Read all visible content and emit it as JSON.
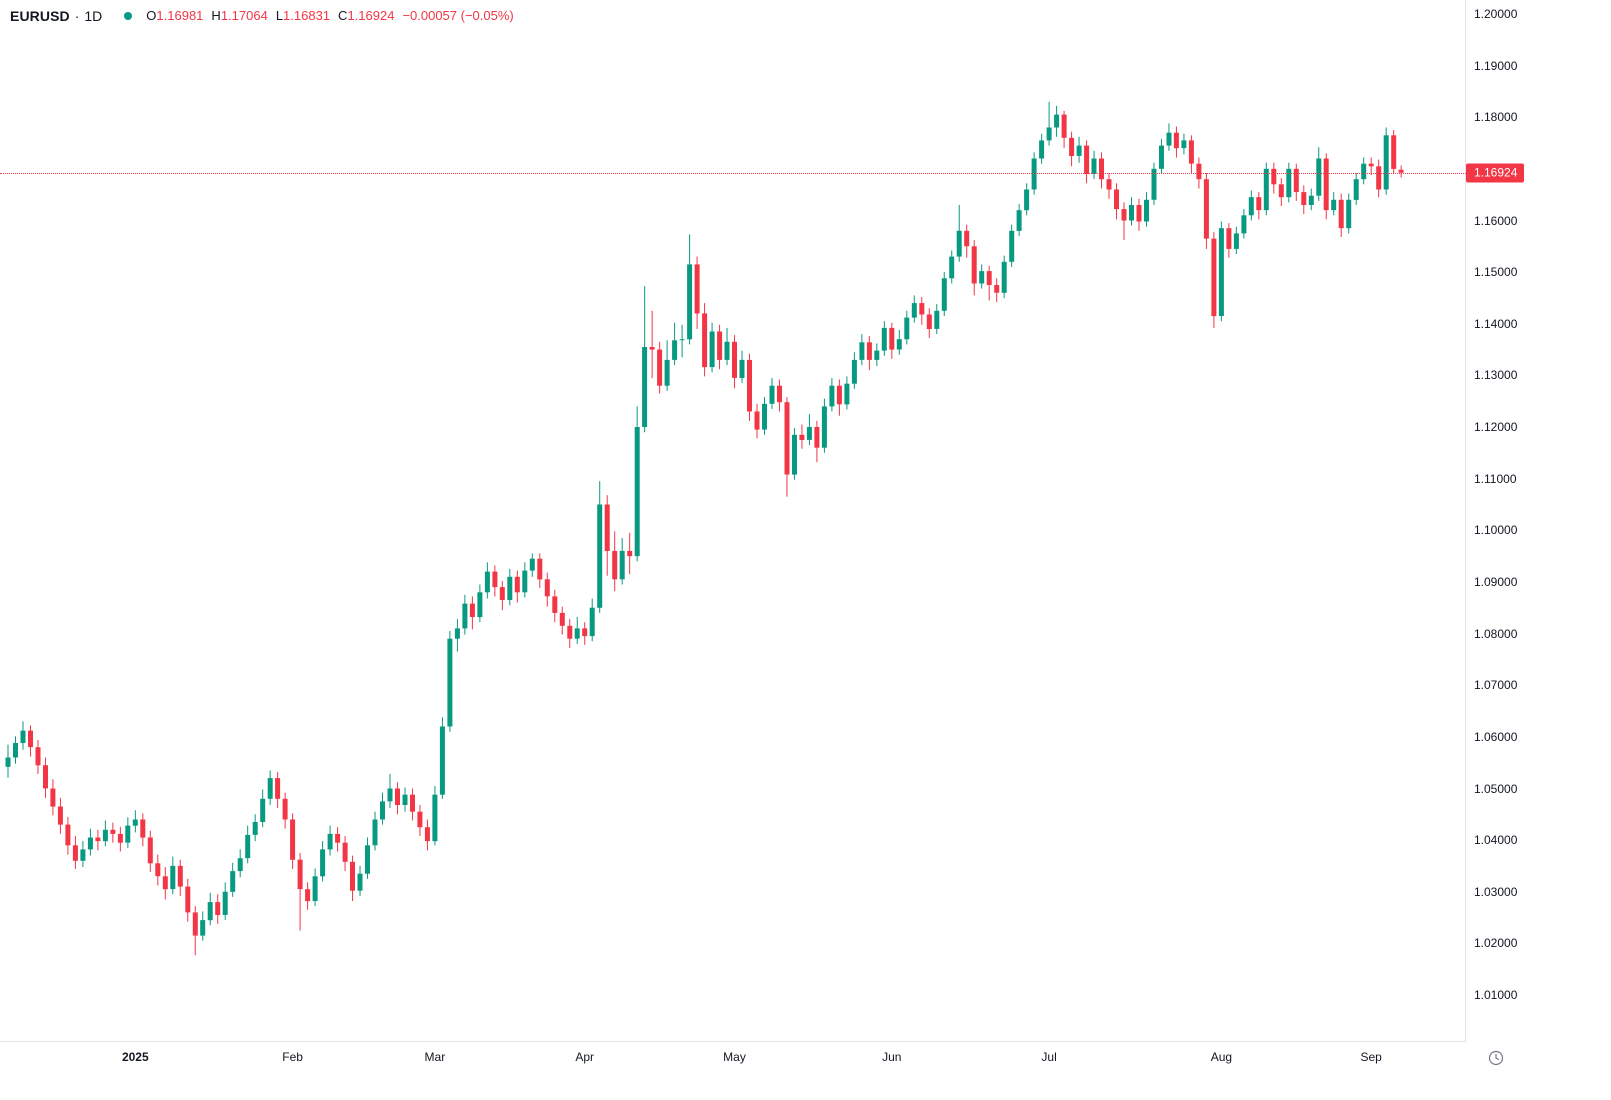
{
  "header": {
    "symbol": "EURUSD",
    "separator": "·",
    "timeframe": "1D",
    "ohlc": {
      "o_label": "O",
      "o": "1.16981",
      "h_label": "H",
      "h": "1.17064",
      "l_label": "L",
      "l": "1.16831",
      "c_label": "C",
      "c": "1.16924",
      "change": "−0.00057 (−0.05%)"
    }
  },
  "colors": {
    "up": "#089981",
    "down": "#f23645",
    "text": "#131722",
    "grid": "#e0e3eb",
    "badge_bg": "#f23645",
    "badge_text": "#ffffff"
  },
  "price_axis": {
    "badge": {
      "text": "1.16924",
      "price": 1.16924
    },
    "labels": [
      {
        "text": "1.20000",
        "price": 1.2
      },
      {
        "text": "1.19000",
        "price": 1.19
      },
      {
        "text": "1.18000",
        "price": 1.18
      },
      {
        "text": "1.16000",
        "price": 1.16
      },
      {
        "text": "1.15000",
        "price": 1.15
      },
      {
        "text": "1.14000",
        "price": 1.14
      },
      {
        "text": "1.13000",
        "price": 1.13
      },
      {
        "text": "1.12000",
        "price": 1.12
      },
      {
        "text": "1.11000",
        "price": 1.11
      },
      {
        "text": "1.10000",
        "price": 1.1
      },
      {
        "text": "1.09000",
        "price": 1.09
      },
      {
        "text": "1.08000",
        "price": 1.08
      },
      {
        "text": "1.07000",
        "price": 1.07
      },
      {
        "text": "1.06000",
        "price": 1.06
      },
      {
        "text": "1.05000",
        "price": 1.05
      },
      {
        "text": "1.04000",
        "price": 1.04
      },
      {
        "text": "1.03000",
        "price": 1.03
      },
      {
        "text": "1.02000",
        "price": 1.02
      },
      {
        "text": "1.01000",
        "price": 1.01
      }
    ]
  },
  "time_axis": {
    "labels": [
      {
        "text": "2025",
        "index": 17,
        "bold": true
      },
      {
        "text": "Feb",
        "index": 38
      },
      {
        "text": "Mar",
        "index": 57
      },
      {
        "text": "Apr",
        "index": 77
      },
      {
        "text": "May",
        "index": 97
      },
      {
        "text": "Jun",
        "index": 118
      },
      {
        "text": "Jul",
        "index": 139
      },
      {
        "text": "Aug",
        "index": 162
      },
      {
        "text": "Sep",
        "index": 182
      }
    ]
  },
  "chart_data": {
    "type": "candlestick",
    "title": "EURUSD daily candlestick chart",
    "symbol": "EURUSD",
    "interval": "1D",
    "xlabel": "",
    "ylabel": "",
    "ylim": [
      1.0009,
      1.2027
    ],
    "grid": false,
    "last_price": 1.16924,
    "last_candle": {
      "open": 1.16981,
      "high": 1.17064,
      "low": 1.16831,
      "close": 1.16924
    },
    "candles_format": [
      "open",
      "high",
      "low",
      "close"
    ],
    "candles": [
      [
        1.0542,
        1.0585,
        1.0521,
        1.056
      ],
      [
        1.056,
        1.0601,
        1.0548,
        1.0588
      ],
      [
        1.0588,
        1.063,
        1.0575,
        1.0612
      ],
      [
        1.0612,
        1.0622,
        1.0562,
        1.058
      ],
      [
        1.058,
        1.0594,
        1.0528,
        1.0545
      ],
      [
        1.0545,
        1.056,
        1.0482,
        1.05
      ],
      [
        1.05,
        1.0518,
        1.0448,
        1.0465
      ],
      [
        1.0465,
        1.0482,
        1.0412,
        1.043
      ],
      [
        1.043,
        1.0445,
        1.0372,
        1.039
      ],
      [
        1.039,
        1.0408,
        1.0344,
        1.036
      ],
      [
        1.036,
        1.0398,
        1.0348,
        1.0382
      ],
      [
        1.0382,
        1.0422,
        1.037,
        1.0405
      ],
      [
        1.0405,
        1.042,
        1.038,
        1.0398
      ],
      [
        1.0398,
        1.0438,
        1.0388,
        1.042
      ],
      [
        1.042,
        1.0434,
        1.0395,
        1.0412
      ],
      [
        1.0412,
        1.0426,
        1.0378,
        1.0395
      ],
      [
        1.0395,
        1.0444,
        1.0385,
        1.0428
      ],
      [
        1.0428,
        1.0458,
        1.0415,
        1.044
      ],
      [
        1.044,
        1.0452,
        1.0388,
        1.0405
      ],
      [
        1.0405,
        1.0418,
        1.0338,
        1.0355
      ],
      [
        1.0355,
        1.0372,
        1.0312,
        1.033
      ],
      [
        1.033,
        1.0348,
        1.0285,
        1.0305
      ],
      [
        1.0305,
        1.0368,
        1.0295,
        1.035
      ],
      [
        1.035,
        1.0362,
        1.0292,
        1.031
      ],
      [
        1.031,
        1.0325,
        1.0242,
        1.026
      ],
      [
        1.026,
        1.0272,
        1.0177,
        1.0215
      ],
      [
        1.0215,
        1.0262,
        1.0205,
        1.0245
      ],
      [
        1.0245,
        1.0298,
        1.0235,
        1.028
      ],
      [
        1.028,
        1.0295,
        1.0238,
        1.0255
      ],
      [
        1.0255,
        1.0318,
        1.0245,
        1.03
      ],
      [
        1.03,
        1.0356,
        1.029,
        1.034
      ],
      [
        1.034,
        1.0382,
        1.0328,
        1.0365
      ],
      [
        1.0365,
        1.0428,
        1.0355,
        1.041
      ],
      [
        1.041,
        1.045,
        1.0398,
        1.0435
      ],
      [
        1.0435,
        1.0498,
        1.0425,
        1.048
      ],
      [
        1.048,
        1.0535,
        1.0468,
        1.052
      ],
      [
        1.052,
        1.0532,
        1.0462,
        1.048
      ],
      [
        1.048,
        1.0492,
        1.0422,
        1.044
      ],
      [
        1.044,
        1.0452,
        1.0344,
        1.0362
      ],
      [
        1.0362,
        1.0375,
        1.0225,
        1.0305
      ],
      [
        1.0305,
        1.0318,
        1.0265,
        1.0282
      ],
      [
        1.0282,
        1.0345,
        1.0272,
        1.033
      ],
      [
        1.033,
        1.0398,
        1.032,
        1.0382
      ],
      [
        1.0382,
        1.0428,
        1.037,
        1.0412
      ],
      [
        1.0412,
        1.0425,
        1.0378,
        1.0395
      ],
      [
        1.0395,
        1.0408,
        1.034,
        1.0358
      ],
      [
        1.0358,
        1.037,
        1.0282,
        1.0302
      ],
      [
        1.0302,
        1.035,
        1.0292,
        1.0335
      ],
      [
        1.0335,
        1.0405,
        1.0325,
        1.039
      ],
      [
        1.039,
        1.0455,
        1.038,
        1.044
      ],
      [
        1.044,
        1.0492,
        1.043,
        1.0475
      ],
      [
        1.0475,
        1.0528,
        1.0462,
        1.05
      ],
      [
        1.05,
        1.0512,
        1.045,
        1.0468
      ],
      [
        1.0468,
        1.0502,
        1.0455,
        1.0488
      ],
      [
        1.0488,
        1.05,
        1.0438,
        1.0455
      ],
      [
        1.0455,
        1.0468,
        1.0408,
        1.0425
      ],
      [
        1.0425,
        1.044,
        1.038,
        1.0398
      ],
      [
        1.0398,
        1.0505,
        1.039,
        1.0488
      ],
      [
        1.0488,
        1.0638,
        1.048,
        1.062
      ],
      [
        1.062,
        1.0805,
        1.061,
        1.079
      ],
      [
        1.079,
        1.0828,
        1.0765,
        1.081
      ],
      [
        1.081,
        1.0875,
        1.0798,
        1.0858
      ],
      [
        1.0858,
        1.0872,
        1.0808,
        1.0832
      ],
      [
        1.0832,
        1.0895,
        1.0822,
        1.088
      ],
      [
        1.088,
        1.0938,
        1.0868,
        1.092
      ],
      [
        1.092,
        1.0932,
        1.0872,
        1.089
      ],
      [
        1.089,
        1.0902,
        1.0845,
        1.0865
      ],
      [
        1.0865,
        1.0925,
        1.0855,
        1.091
      ],
      [
        1.091,
        1.0922,
        1.086,
        1.088
      ],
      [
        1.088,
        1.0938,
        1.087,
        1.0922
      ],
      [
        1.0922,
        1.0955,
        1.091,
        1.0945
      ],
      [
        1.0945,
        1.0955,
        1.0888,
        1.0905
      ],
      [
        1.0905,
        1.0918,
        1.0852,
        1.0872
      ],
      [
        1.0872,
        1.0885,
        1.0822,
        1.084
      ],
      [
        1.084,
        1.0852,
        1.0798,
        1.0815
      ],
      [
        1.0815,
        1.0828,
        1.0772,
        1.079
      ],
      [
        1.079,
        1.0832,
        1.078,
        1.081
      ],
      [
        1.081,
        1.0822,
        1.0778,
        1.0795
      ],
      [
        1.0795,
        1.0868,
        1.0785,
        1.085
      ],
      [
        1.085,
        1.1095,
        1.084,
        1.105
      ],
      [
        1.105,
        1.1068,
        1.0912,
        1.096
      ],
      [
        1.096,
        1.0998,
        1.0882,
        1.0905
      ],
      [
        1.0905,
        1.0985,
        1.0895,
        1.096
      ],
      [
        1.096,
        1.0995,
        1.0915,
        1.095
      ],
      [
        1.095,
        1.124,
        1.094,
        1.12
      ],
      [
        1.12,
        1.1473,
        1.119,
        1.1355
      ],
      [
        1.1355,
        1.1425,
        1.1295,
        1.135
      ],
      [
        1.135,
        1.1365,
        1.1265,
        1.128
      ],
      [
        1.128,
        1.1368,
        1.127,
        1.133
      ],
      [
        1.133,
        1.1402,
        1.132,
        1.1368
      ],
      [
        1.1368,
        1.1398,
        1.1335,
        1.137
      ],
      [
        1.137,
        1.1573,
        1.136,
        1.1515
      ],
      [
        1.1515,
        1.153,
        1.139,
        1.142
      ],
      [
        1.142,
        1.144,
        1.1298,
        1.1316
      ],
      [
        1.1316,
        1.1402,
        1.1306,
        1.1385
      ],
      [
        1.1385,
        1.1398,
        1.1312,
        1.133
      ],
      [
        1.133,
        1.1392,
        1.132,
        1.1365
      ],
      [
        1.1365,
        1.1378,
        1.1275,
        1.1295
      ],
      [
        1.1295,
        1.1348,
        1.1285,
        1.133
      ],
      [
        1.133,
        1.1342,
        1.1212,
        1.123
      ],
      [
        1.123,
        1.1245,
        1.1178,
        1.1195
      ],
      [
        1.1195,
        1.1258,
        1.1185,
        1.1245
      ],
      [
        1.1245,
        1.1295,
        1.1235,
        1.128
      ],
      [
        1.128,
        1.1292,
        1.123,
        1.1248
      ],
      [
        1.1248,
        1.1258,
        1.1065,
        1.1108
      ],
      [
        1.1108,
        1.1198,
        1.1098,
        1.1185
      ],
      [
        1.1185,
        1.1205,
        1.1158,
        1.1175
      ],
      [
        1.1175,
        1.1225,
        1.1165,
        1.12
      ],
      [
        1.12,
        1.1212,
        1.1132,
        1.116
      ],
      [
        1.116,
        1.1255,
        1.115,
        1.124
      ],
      [
        1.124,
        1.1295,
        1.123,
        1.128
      ],
      [
        1.128,
        1.1292,
        1.1222,
        1.1244
      ],
      [
        1.1244,
        1.1298,
        1.1234,
        1.1284
      ],
      [
        1.1284,
        1.1345,
        1.1274,
        1.133
      ],
      [
        1.133,
        1.138,
        1.132,
        1.1364
      ],
      [
        1.1364,
        1.1376,
        1.131,
        1.133
      ],
      [
        1.133,
        1.1362,
        1.1318,
        1.1348
      ],
      [
        1.1348,
        1.1405,
        1.1338,
        1.1392
      ],
      [
        1.1392,
        1.1402,
        1.1332,
        1.135
      ],
      [
        1.135,
        1.1388,
        1.134,
        1.137
      ],
      [
        1.137,
        1.1425,
        1.136,
        1.1412
      ],
      [
        1.1412,
        1.1455,
        1.1402,
        1.144
      ],
      [
        1.144,
        1.1452,
        1.1398,
        1.1418
      ],
      [
        1.1418,
        1.143,
        1.1372,
        1.139
      ],
      [
        1.139,
        1.1438,
        1.138,
        1.1425
      ],
      [
        1.1425,
        1.15,
        1.1415,
        1.1488
      ],
      [
        1.1488,
        1.1542,
        1.1478,
        1.153
      ],
      [
        1.153,
        1.163,
        1.152,
        1.158
      ],
      [
        1.158,
        1.1592,
        1.1528,
        1.155
      ],
      [
        1.155,
        1.1562,
        1.1455,
        1.1478
      ],
      [
        1.1478,
        1.1515,
        1.1468,
        1.1502
      ],
      [
        1.1502,
        1.1512,
        1.1445,
        1.1475
      ],
      [
        1.1475,
        1.1488,
        1.1442,
        1.146
      ],
      [
        1.146,
        1.1532,
        1.145,
        1.152
      ],
      [
        1.152,
        1.1592,
        1.151,
        1.158
      ],
      [
        1.158,
        1.1632,
        1.157,
        1.162
      ],
      [
        1.162,
        1.1672,
        1.161,
        1.166
      ],
      [
        1.166,
        1.1732,
        1.165,
        1.172
      ],
      [
        1.172,
        1.1768,
        1.171,
        1.1755
      ],
      [
        1.1755,
        1.183,
        1.1745,
        1.178
      ],
      [
        1.178,
        1.1822,
        1.1762,
        1.1805
      ],
      [
        1.1805,
        1.1812,
        1.174,
        1.176
      ],
      [
        1.176,
        1.1772,
        1.1705,
        1.1725
      ],
      [
        1.1725,
        1.1762,
        1.1712,
        1.1745
      ],
      [
        1.1745,
        1.1755,
        1.1672,
        1.169
      ],
      [
        1.169,
        1.1735,
        1.168,
        1.172
      ],
      [
        1.172,
        1.1732,
        1.1662,
        1.168
      ],
      [
        1.168,
        1.1692,
        1.1642,
        1.166
      ],
      [
        1.166,
        1.1672,
        1.1602,
        1.1622
      ],
      [
        1.1622,
        1.1635,
        1.1562,
        1.16
      ],
      [
        1.16,
        1.1645,
        1.159,
        1.163
      ],
      [
        1.163,
        1.1642,
        1.158,
        1.1598
      ],
      [
        1.1598,
        1.1655,
        1.1588,
        1.164
      ],
      [
        1.164,
        1.1712,
        1.163,
        1.17
      ],
      [
        1.17,
        1.1758,
        1.169,
        1.1745
      ],
      [
        1.1745,
        1.1788,
        1.1735,
        1.177
      ],
      [
        1.177,
        1.1782,
        1.1722,
        1.174
      ],
      [
        1.174,
        1.1768,
        1.1728,
        1.1755
      ],
      [
        1.1755,
        1.1765,
        1.1692,
        1.171
      ],
      [
        1.171,
        1.1722,
        1.1662,
        1.168
      ],
      [
        1.168,
        1.1692,
        1.1545,
        1.1565
      ],
      [
        1.1565,
        1.1578,
        1.1392,
        1.1415
      ],
      [
        1.1415,
        1.1598,
        1.1405,
        1.1585
      ],
      [
        1.1585,
        1.1595,
        1.1528,
        1.1545
      ],
      [
        1.1545,
        1.1588,
        1.1535,
        1.1575
      ],
      [
        1.1575,
        1.1622,
        1.1565,
        1.161
      ],
      [
        1.161,
        1.1658,
        1.16,
        1.1645
      ],
      [
        1.1645,
        1.1655,
        1.1602,
        1.162
      ],
      [
        1.162,
        1.1712,
        1.161,
        1.17
      ],
      [
        1.17,
        1.1712,
        1.1652,
        1.167
      ],
      [
        1.167,
        1.1682,
        1.1628,
        1.1645
      ],
      [
        1.1645,
        1.1712,
        1.1635,
        1.17
      ],
      [
        1.17,
        1.171,
        1.1638,
        1.1655
      ],
      [
        1.1655,
        1.1668,
        1.1612,
        1.163
      ],
      [
        1.163,
        1.1662,
        1.162,
        1.1648
      ],
      [
        1.1648,
        1.1742,
        1.1638,
        1.172
      ],
      [
        1.172,
        1.173,
        1.1602,
        1.162
      ],
      [
        1.162,
        1.1655,
        1.161,
        1.164
      ],
      [
        1.164,
        1.1652,
        1.1568,
        1.1585
      ],
      [
        1.1585,
        1.1652,
        1.1575,
        1.164
      ],
      [
        1.164,
        1.1692,
        1.163,
        1.168
      ],
      [
        1.168,
        1.1722,
        1.167,
        1.171
      ],
      [
        1.171,
        1.1722,
        1.1688,
        1.1705
      ],
      [
        1.1705,
        1.1718,
        1.1645,
        1.166
      ],
      [
        1.166,
        1.178,
        1.165,
        1.1765
      ],
      [
        1.1765,
        1.1775,
        1.1692,
        1.17
      ],
      [
        1.16981,
        1.17064,
        1.16831,
        1.16924
      ]
    ]
  }
}
